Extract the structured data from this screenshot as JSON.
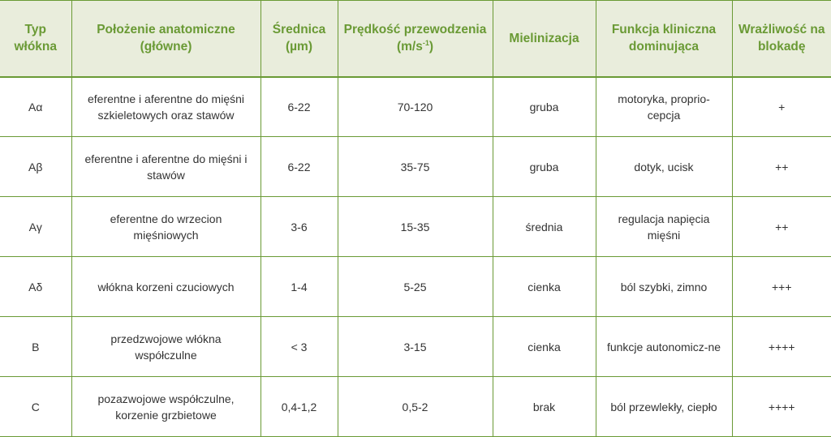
{
  "colors": {
    "accent": "#6a9a35",
    "header_bg": "#e9eddc",
    "text": "#333333"
  },
  "headers": {
    "typ": "Typ włókna",
    "polozenie": "Położenie anatomiczne (główne)",
    "srednica": "Średnica (µm)",
    "predkosc_main": "Prędkość przewodzenia (m/s",
    "predkosc_sup": "-1",
    "predkosc_end": ")",
    "mielinizacja": "Mielinizacja",
    "funkcja": "Funkcja kliniczna dominująca",
    "wrazliwosc": "Wrażliwość na blokadę"
  },
  "rows": [
    {
      "typ": "Aα",
      "polozenie": "eferentne i aferentne do mięśni szkieletowych oraz stawów",
      "srednica": "6-22",
      "predkosc": "70-120",
      "mielinizacja": "gruba",
      "funkcja": "motoryka, proprio-cepcja",
      "wrazliwosc": "+"
    },
    {
      "typ": "Aβ",
      "polozenie": "eferentne i aferentne do mięśni i stawów",
      "srednica": "6-22",
      "predkosc": "35-75",
      "mielinizacja": "gruba",
      "funkcja": "dotyk, ucisk",
      "wrazliwosc": "++"
    },
    {
      "typ": "Aγ",
      "polozenie": "eferentne do wrzecion mięśniowych",
      "srednica": "3-6",
      "predkosc": "15-35",
      "mielinizacja": "średnia",
      "funkcja": "regulacja napięcia mięśni",
      "wrazliwosc": "++"
    },
    {
      "typ": "Aδ",
      "polozenie": "włókna korzeni czuciowych",
      "srednica": "1-4",
      "predkosc": "5-25",
      "mielinizacja": "cienka",
      "funkcja": "ból szybki, zimno",
      "wrazliwosc": "+++"
    },
    {
      "typ": "B",
      "polozenie": "przedzwojowe włókna współczulne",
      "srednica": "< 3",
      "predkosc": "3-15",
      "mielinizacja": "cienka",
      "funkcja": "funkcje autonomicz-ne",
      "wrazliwosc": "++++"
    },
    {
      "typ": "C",
      "polozenie": "pozazwojowe współczulne, korzenie grzbietowe",
      "srednica": "0,4-1,2",
      "predkosc": "0,5-2",
      "mielinizacja": "brak",
      "funkcja": "ból przewlekły, ciepło",
      "wrazliwosc": "++++"
    }
  ]
}
